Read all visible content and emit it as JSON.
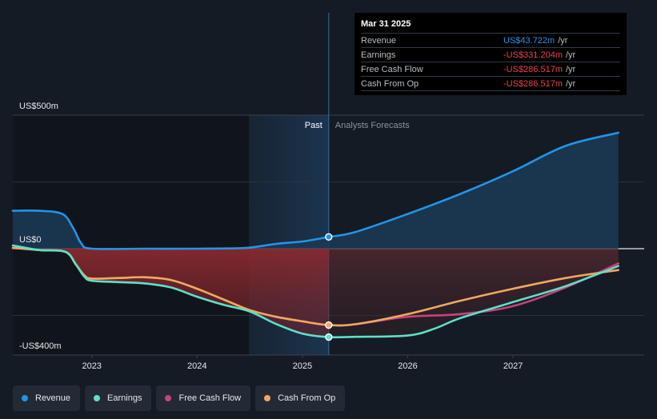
{
  "chart_data": {
    "type": "line",
    "title": "",
    "y_axis": {
      "labels": [
        "US$500m",
        "US$0",
        "-US$400m"
      ],
      "ylim": [
        -400,
        500
      ],
      "unit": "US$m"
    },
    "x_axis": {
      "ticks": [
        "2023",
        "2024",
        "2025",
        "2026",
        "2027"
      ],
      "xlim": [
        2022.25,
        2028.0
      ]
    },
    "divider": {
      "x": 2025.25,
      "past_label": "Past",
      "forecast_label": "Analysts Forecasts"
    },
    "series": [
      {
        "name": "Revenue",
        "color": "#2394e6",
        "points": [
          [
            2022.25,
            142
          ],
          [
            2022.5,
            142
          ],
          [
            2022.72,
            130
          ],
          [
            2022.82,
            80
          ],
          [
            2022.9,
            20
          ],
          [
            2023.0,
            0
          ],
          [
            2023.5,
            0
          ],
          [
            2024.0,
            0
          ],
          [
            2024.3,
            1
          ],
          [
            2024.5,
            4
          ],
          [
            2024.75,
            18
          ],
          [
            2025.0,
            27
          ],
          [
            2025.25,
            44
          ],
          [
            2025.5,
            62
          ],
          [
            2026.0,
            130
          ],
          [
            2026.5,
            205
          ],
          [
            2027.0,
            290
          ],
          [
            2027.5,
            385
          ],
          [
            2028.0,
            434
          ]
        ]
      },
      {
        "name": "Earnings",
        "color": "#5ee0c8",
        "points": [
          [
            2022.25,
            12
          ],
          [
            2022.5,
            -5
          ],
          [
            2022.75,
            -12
          ],
          [
            2022.85,
            -60
          ],
          [
            2022.93,
            -105
          ],
          [
            2023.0,
            -120
          ],
          [
            2023.25,
            -125
          ],
          [
            2023.5,
            -130
          ],
          [
            2023.75,
            -145
          ],
          [
            2024.0,
            -180
          ],
          [
            2024.25,
            -210
          ],
          [
            2024.5,
            -235
          ],
          [
            2024.75,
            -282
          ],
          [
            2025.0,
            -318
          ],
          [
            2025.25,
            -331
          ],
          [
            2025.5,
            -330
          ],
          [
            2026.0,
            -325
          ],
          [
            2026.25,
            -300
          ],
          [
            2026.5,
            -260
          ],
          [
            2027.0,
            -200
          ],
          [
            2027.5,
            -140
          ],
          [
            2028.0,
            -65
          ]
        ]
      },
      {
        "name": "Free Cash Flow",
        "color": "#c8427a",
        "points": [
          [
            2022.25,
            3
          ],
          [
            2022.5,
            -5
          ],
          [
            2022.75,
            -12
          ],
          [
            2022.85,
            -60
          ],
          [
            2022.93,
            -100
          ],
          [
            2023.0,
            -112
          ],
          [
            2023.25,
            -110
          ],
          [
            2023.5,
            -107
          ],
          [
            2023.75,
            -117
          ],
          [
            2024.0,
            -150
          ],
          [
            2024.25,
            -190
          ],
          [
            2024.5,
            -230
          ],
          [
            2024.75,
            -255
          ],
          [
            2025.0,
            -272
          ],
          [
            2025.25,
            -286
          ],
          [
            2025.5,
            -283
          ],
          [
            2026.0,
            -255
          ],
          [
            2026.5,
            -245
          ],
          [
            2027.0,
            -215
          ],
          [
            2027.5,
            -145
          ],
          [
            2028.0,
            -55
          ]
        ]
      },
      {
        "name": "Cash From Op",
        "color": "#f0a860",
        "points": [
          [
            2022.25,
            3
          ],
          [
            2022.5,
            -5
          ],
          [
            2022.75,
            -12
          ],
          [
            2022.85,
            -60
          ],
          [
            2022.93,
            -100
          ],
          [
            2023.0,
            -112
          ],
          [
            2023.25,
            -110
          ],
          [
            2023.5,
            -107
          ],
          [
            2023.75,
            -117
          ],
          [
            2024.0,
            -150
          ],
          [
            2024.25,
            -190
          ],
          [
            2024.5,
            -230
          ],
          [
            2024.75,
            -255
          ],
          [
            2025.0,
            -272
          ],
          [
            2025.25,
            -286
          ],
          [
            2025.5,
            -283
          ],
          [
            2026.0,
            -245
          ],
          [
            2026.5,
            -195
          ],
          [
            2027.0,
            -150
          ],
          [
            2027.5,
            -110
          ],
          [
            2028.0,
            -80
          ]
        ]
      }
    ],
    "tooltip": {
      "date": "Mar 31 2025",
      "rows": [
        {
          "label": "Revenue",
          "value": "US$43.722m",
          "unit": "/yr",
          "negative": false
        },
        {
          "label": "Earnings",
          "value": "-US$331.204m",
          "unit": "/yr",
          "negative": true
        },
        {
          "label": "Free Cash Flow",
          "value": "-US$286.517m",
          "unit": "/yr",
          "negative": true
        },
        {
          "label": "Cash From Op",
          "value": "-US$286.517m",
          "unit": "/yr",
          "negative": true
        }
      ]
    }
  },
  "legend": [
    {
      "label": "Revenue",
      "color": "#2394e6"
    },
    {
      "label": "Earnings",
      "color": "#5ee0c8"
    },
    {
      "label": "Free Cash Flow",
      "color": "#c8427a"
    },
    {
      "label": "Cash From Op",
      "color": "#f0a860"
    }
  ]
}
